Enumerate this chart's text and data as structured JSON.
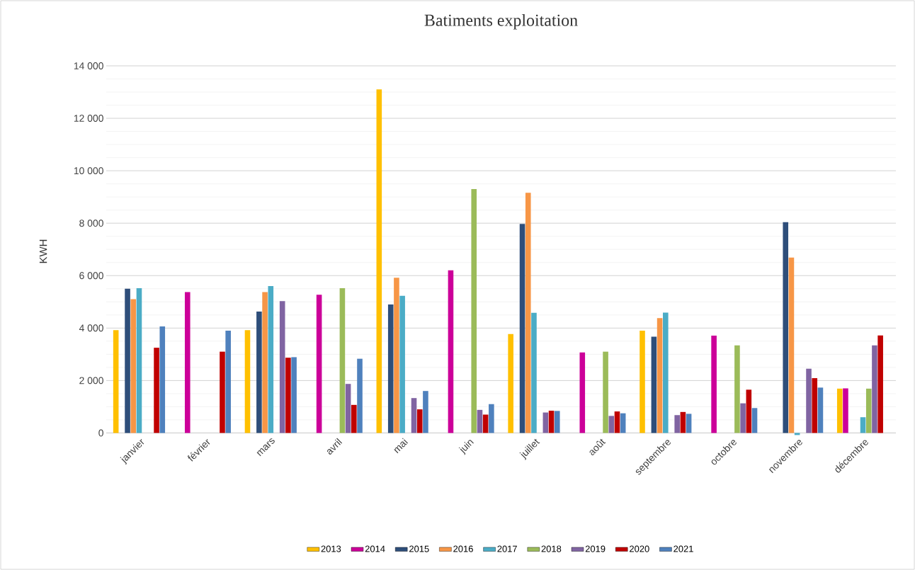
{
  "chart_data": {
    "type": "bar",
    "title": "Batiments exploitation",
    "ylabel": "KWH",
    "categories": [
      "janvier",
      "février",
      "mars",
      "avril",
      "mai",
      "juin",
      "juillet",
      "août",
      "septembre",
      "octobre",
      "novembre",
      "décembre"
    ],
    "series": [
      {
        "name": "2013",
        "color": "#ffc000",
        "values": [
          3920,
          null,
          3920,
          null,
          13100,
          null,
          3770,
          null,
          3900,
          null,
          null,
          1690
        ]
      },
      {
        "name": "2014",
        "color": "#cc0099",
        "values": [
          null,
          5370,
          null,
          5270,
          null,
          6200,
          null,
          3070,
          null,
          3710,
          null,
          1700
        ]
      },
      {
        "name": "2015",
        "color": "#2e4e7a",
        "values": [
          5500,
          null,
          4630,
          null,
          4900,
          null,
          7970,
          null,
          3670,
          null,
          8040,
          null
        ]
      },
      {
        "name": "2016",
        "color": "#f79646",
        "values": [
          5100,
          null,
          5370,
          null,
          5920,
          null,
          9160,
          null,
          4380,
          null,
          6690,
          null
        ]
      },
      {
        "name": "2017",
        "color": "#4bacc6",
        "values": [
          5520,
          null,
          5600,
          null,
          5230,
          null,
          4580,
          null,
          4590,
          null,
          -80,
          600
        ]
      },
      {
        "name": "2018",
        "color": "#9bbb59",
        "values": [
          null,
          null,
          null,
          5520,
          null,
          9300,
          null,
          3100,
          null,
          3340,
          null,
          1690
        ]
      },
      {
        "name": "2019",
        "color": "#8064a2",
        "values": [
          null,
          null,
          5030,
          1870,
          1330,
          880,
          780,
          650,
          680,
          1130,
          2450,
          3340
        ]
      },
      {
        "name": "2020",
        "color": "#c00000",
        "values": [
          3250,
          3100,
          2870,
          1070,
          900,
          700,
          850,
          820,
          800,
          1650,
          2090,
          3720
        ]
      },
      {
        "name": "2021",
        "color": "#4f81bd",
        "values": [
          4060,
          3900,
          2890,
          2830,
          1600,
          1100,
          840,
          750,
          730,
          950,
          1730,
          null
        ]
      }
    ],
    "ylim": [
      -150,
      14000
    ],
    "yticks": [
      0,
      {
        "value": 2000,
        "label": "2 000"
      },
      {
        "value": 4000,
        "label": "4 000"
      },
      {
        "value": 6000,
        "label": "6 000"
      },
      {
        "value": 8000,
        "label": "8 000"
      },
      {
        "value": 10000,
        "label": "10 000"
      },
      {
        "value": 12000,
        "label": "12 000"
      },
      {
        "value": 14000,
        "label": "14 000"
      }
    ],
    "grid": "y",
    "legend": "bottom"
  }
}
